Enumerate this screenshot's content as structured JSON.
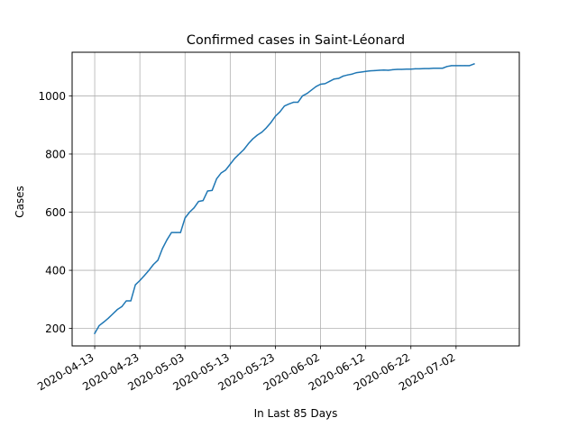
{
  "chart_data": {
    "type": "line",
    "title": "Confirmed cases in Saint-Léonard",
    "xlabel": "In Last 85 Days",
    "ylabel": "Cases",
    "grid": true,
    "xlim": [
      "2020-04-08",
      "2020-07-16"
    ],
    "ylim": [
      140,
      1150
    ],
    "x_ticks": [
      "2020-04-13",
      "2020-04-23",
      "2020-05-03",
      "2020-05-13",
      "2020-05-23",
      "2020-06-02",
      "2020-06-12",
      "2020-06-22",
      "2020-07-02"
    ],
    "y_ticks": [
      200,
      400,
      600,
      800,
      1000
    ],
    "series": [
      {
        "color": "#1f77b4",
        "x": [
          "2020-04-13",
          "2020-04-14",
          "2020-04-15",
          "2020-04-16",
          "2020-04-17",
          "2020-04-18",
          "2020-04-19",
          "2020-04-20",
          "2020-04-21",
          "2020-04-22",
          "2020-04-23",
          "2020-04-24",
          "2020-04-25",
          "2020-04-26",
          "2020-04-27",
          "2020-04-28",
          "2020-04-29",
          "2020-04-30",
          "2020-05-01",
          "2020-05-02",
          "2020-05-03",
          "2020-05-04",
          "2020-05-05",
          "2020-05-06",
          "2020-05-07",
          "2020-05-08",
          "2020-05-09",
          "2020-05-10",
          "2020-05-11",
          "2020-05-12",
          "2020-05-13",
          "2020-05-14",
          "2020-05-15",
          "2020-05-16",
          "2020-05-17",
          "2020-05-18",
          "2020-05-19",
          "2020-05-20",
          "2020-05-21",
          "2020-05-22",
          "2020-05-23",
          "2020-05-24",
          "2020-05-25",
          "2020-05-26",
          "2020-05-27",
          "2020-05-28",
          "2020-05-29",
          "2020-05-30",
          "2020-05-31",
          "2020-06-01",
          "2020-06-02",
          "2020-06-03",
          "2020-06-04",
          "2020-06-05",
          "2020-06-06",
          "2020-06-07",
          "2020-06-08",
          "2020-06-09",
          "2020-06-10",
          "2020-06-11",
          "2020-06-12",
          "2020-06-13",
          "2020-06-14",
          "2020-06-15",
          "2020-06-16",
          "2020-06-17",
          "2020-06-18",
          "2020-06-19",
          "2020-06-20",
          "2020-06-21",
          "2020-06-22",
          "2020-06-23",
          "2020-06-24",
          "2020-06-25",
          "2020-06-26",
          "2020-06-27",
          "2020-06-28",
          "2020-06-29",
          "2020-06-30",
          "2020-07-01",
          "2020-07-02",
          "2020-07-03",
          "2020-07-04",
          "2020-07-05",
          "2020-07-06"
        ],
        "y": [
          183,
          210,
          222,
          235,
          250,
          265,
          275,
          295,
          295,
          350,
          365,
          382,
          400,
          420,
          435,
          475,
          505,
          530,
          530,
          530,
          580,
          600,
          615,
          637,
          640,
          673,
          675,
          715,
          735,
          745,
          765,
          785,
          800,
          815,
          835,
          852,
          865,
          875,
          890,
          908,
          930,
          945,
          965,
          972,
          978,
          978,
          1000,
          1008,
          1020,
          1032,
          1040,
          1042,
          1050,
          1058,
          1060,
          1068,
          1072,
          1075,
          1080,
          1082,
          1084,
          1086,
          1087,
          1088,
          1089,
          1088,
          1090,
          1091,
          1091,
          1092,
          1092,
          1093,
          1093,
          1094,
          1094,
          1095,
          1095,
          1095,
          1101,
          1104,
          1104,
          1104,
          1104,
          1104,
          1110
        ]
      }
    ]
  }
}
